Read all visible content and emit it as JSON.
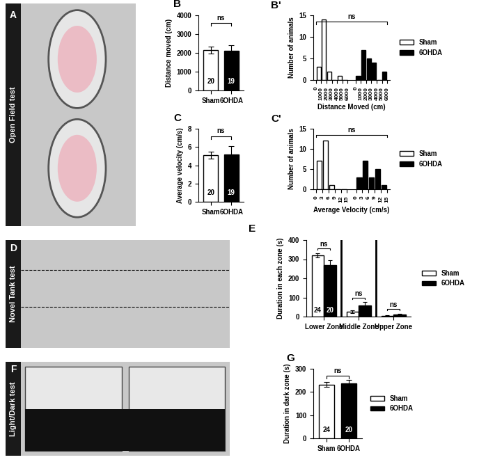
{
  "panels": [
    {
      "letter": "A",
      "label": "Open Field test"
    },
    {
      "letter": "D",
      "label": "Novel Tank test"
    },
    {
      "letter": "F",
      "label": "Light/Dark test"
    }
  ],
  "chart_data": [
    {
      "panel": "B",
      "type": "bar",
      "categories": [
        "Sham",
        "6OHDA"
      ],
      "values": [
        2150,
        2100
      ],
      "errors": [
        180,
        300
      ],
      "colors": [
        "#ffffff",
        "#000000"
      ],
      "n": [
        20,
        19
      ],
      "ylabel": "Distance moved (cm)",
      "ylim": [
        0,
        4000
      ],
      "yticks": [
        0,
        1000,
        2000,
        3000,
        4000
      ],
      "significance": [
        "ns"
      ]
    },
    {
      "panel": "B'",
      "type": "histogram",
      "xlabel": "Distance Moved (cm)",
      "ylabel": "Number of animals",
      "ylim": [
        0,
        15
      ],
      "yticks": [
        0,
        5,
        10,
        15
      ],
      "legend": "right",
      "significance": [
        "ns"
      ],
      "series": [
        {
          "name": "Sham",
          "color": "#ffffff",
          "bins": [
            0,
            1000,
            2000,
            3000,
            4000,
            5000,
            6000
          ],
          "counts": [
            3,
            14,
            2,
            0,
            1,
            0
          ]
        },
        {
          "name": "6OHDA",
          "color": "#000000",
          "bins": [
            0,
            1000,
            2000,
            3000,
            4000,
            5000,
            6000
          ],
          "counts": [
            1,
            7,
            5,
            4,
            0,
            2
          ]
        }
      ]
    },
    {
      "panel": "C",
      "type": "bar",
      "categories": [
        "Sham",
        "6OHDA"
      ],
      "values": [
        5.1,
        5.2
      ],
      "errors": [
        0.35,
        0.9
      ],
      "colors": [
        "#ffffff",
        "#000000"
      ],
      "n": [
        20,
        19
      ],
      "ylabel": "Average velocity (cm/s)",
      "ylim": [
        0,
        8
      ],
      "yticks": [
        0,
        2,
        4,
        6,
        8
      ],
      "significance": [
        "ns"
      ]
    },
    {
      "panel": "C'",
      "type": "histogram",
      "xlabel": "Average Velocity (cm/s)",
      "ylabel": "Number of animals",
      "ylim": [
        0,
        15
      ],
      "yticks": [
        0,
        5,
        10,
        15
      ],
      "legend": "right",
      "significance": [
        "ns"
      ],
      "series": [
        {
          "name": "Sham",
          "color": "#ffffff",
          "bins": [
            0,
            3,
            6,
            9,
            12,
            15
          ],
          "counts": [
            7,
            12,
            1,
            0,
            0
          ]
        },
        {
          "name": "6OHDA",
          "color": "#000000",
          "bins": [
            0,
            3,
            6,
            9,
            12,
            15
          ],
          "counts": [
            3,
            7,
            3,
            5,
            1
          ]
        }
      ]
    },
    {
      "panel": "E",
      "type": "grouped_bar",
      "categories": [
        "Lower Zone",
        "Middle Zone",
        "Upper Zone"
      ],
      "ylabel": "Duration in each zone (s)",
      "ylim": [
        0,
        400
      ],
      "yticks": [
        0,
        100,
        200,
        300,
        400
      ],
      "legend": "right",
      "n": [
        24,
        20
      ],
      "significance": [
        "ns",
        "ns",
        "ns"
      ],
      "series": [
        {
          "name": "Sham",
          "color": "#ffffff",
          "values": [
            320,
            25,
            5
          ],
          "errors": [
            12,
            6,
            2
          ]
        },
        {
          "name": "6OHDA",
          "color": "#000000",
          "values": [
            270,
            60,
            12
          ],
          "errors": [
            25,
            15,
            4
          ]
        }
      ]
    },
    {
      "panel": "G",
      "type": "bar",
      "categories": [
        "Sham",
        "6OHDA"
      ],
      "values": [
        232,
        237
      ],
      "errors": [
        10,
        15
      ],
      "colors": [
        "#ffffff",
        "#000000"
      ],
      "n": [
        24,
        20
      ],
      "ylabel": "Duration in dark zone (s)",
      "ylim": [
        0,
        300
      ],
      "yticks": [
        0,
        100,
        200,
        300
      ],
      "significance": [
        "ns"
      ],
      "legend": "right"
    }
  ]
}
